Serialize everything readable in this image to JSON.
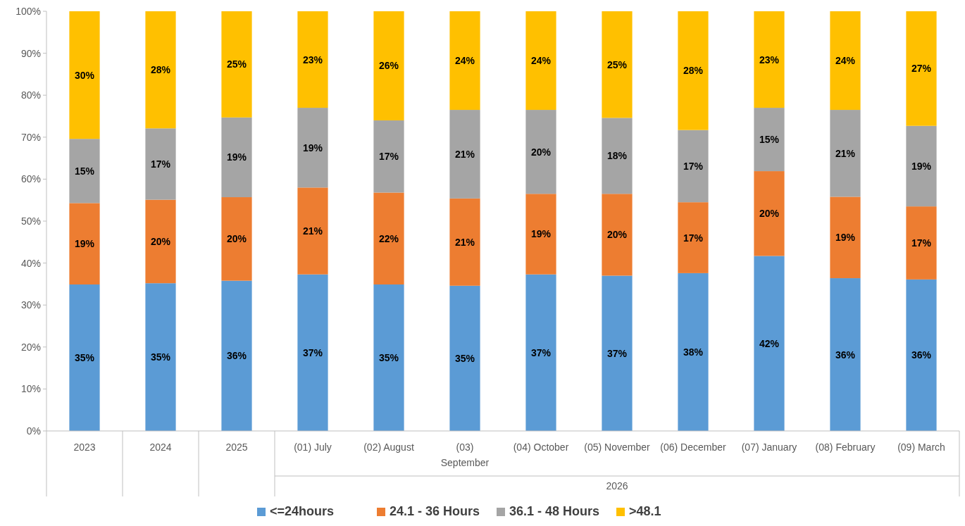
{
  "chart_data": {
    "type": "bar",
    "stacked": true,
    "categories": [
      "2023",
      "2024",
      "2025",
      "(01) July",
      "(02) August",
      "(03) September",
      "(04) October",
      "(05) November",
      "(06) December",
      "(07) January",
      "(08) February",
      "(09) March"
    ],
    "series": [
      {
        "name": "<=24hours",
        "color": "#5b9bd5",
        "values": [
          34.9,
          35.2,
          35.8,
          37.3,
          34.9,
          34.6,
          37.3,
          37.0,
          37.6,
          41.7,
          36.4,
          36.1
        ],
        "value_labels": [
          "35%",
          "35%",
          "36%",
          "37%",
          "35%",
          "35%",
          "37%",
          "37%",
          "38%",
          "42%",
          "36%",
          "36%"
        ]
      },
      {
        "name": "24.1 - 36 Hours",
        "color": "#ed7d31",
        "values": [
          19.4,
          19.9,
          19.9,
          20.7,
          21.9,
          20.8,
          19.2,
          19.5,
          16.9,
          20.2,
          19.4,
          17.4
        ],
        "value_labels": [
          "19%",
          "20%",
          "20%",
          "21%",
          "22%",
          "21%",
          "19%",
          "20%",
          "17%",
          "20%",
          "19%",
          "17%"
        ]
      },
      {
        "name": "36.1 - 48 Hours",
        "color": "#a5a5a5",
        "values": [
          15.3,
          17.0,
          19.0,
          19.0,
          17.2,
          21.1,
          20.0,
          18.1,
          17.2,
          15.1,
          20.7,
          19.2
        ],
        "value_labels": [
          "15%",
          "17%",
          "19%",
          "19%",
          "17%",
          "21%",
          "20%",
          "18%",
          "17%",
          "15%",
          "21%",
          "19%"
        ]
      },
      {
        "name": ">48.1",
        "color": "#ffc000",
        "values": [
          30.4,
          27.9,
          25.3,
          23.0,
          26.0,
          23.5,
          23.5,
          25.4,
          28.3,
          23.0,
          23.5,
          27.3
        ],
        "value_labels": [
          "30%",
          "28%",
          "25%",
          "23%",
          "26%",
          "24%",
          "24%",
          "25%",
          "28%",
          "23%",
          "24%",
          "27%"
        ]
      }
    ],
    "ylim": [
      0,
      100
    ],
    "yticks": [
      {
        "value": 0,
        "label": "0%"
      },
      {
        "value": 10,
        "label": "10%"
      },
      {
        "value": 20,
        "label": "20%"
      },
      {
        "value": 30,
        "label": "30%"
      },
      {
        "value": 40,
        "label": "40%"
      },
      {
        "value": 50,
        "label": "50%"
      },
      {
        "value": 60,
        "label": "60%"
      },
      {
        "value": 70,
        "label": "70%"
      },
      {
        "value": 80,
        "label": "80%"
      },
      {
        "value": 90,
        "label": "90%"
      },
      {
        "value": 100,
        "label": "100%"
      }
    ],
    "annotations": [
      "2026"
    ],
    "grid": false,
    "legend": "bottom"
  }
}
